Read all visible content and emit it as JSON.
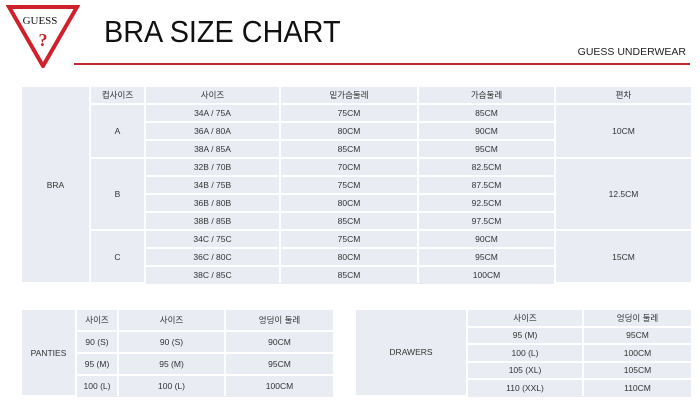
{
  "header": {
    "logo_text": "GUESS",
    "title": "BRA SIZE CHART",
    "brand": "GUESS UNDERWEAR",
    "accent_color": "#c0272d"
  },
  "bra": {
    "label": "BRA",
    "headers": [
      "컵사이즈",
      "사이즈",
      "밑가슴둘레",
      "가슴둘레",
      "편차"
    ],
    "groups": [
      {
        "cup": "A",
        "diff": "10CM",
        "rows": [
          [
            "34A / 75A",
            "75CM",
            "85CM"
          ],
          [
            "36A / 80A",
            "80CM",
            "90CM"
          ],
          [
            "38A / 85A",
            "85CM",
            "95CM"
          ]
        ]
      },
      {
        "cup": "B",
        "diff": "12.5CM",
        "rows": [
          [
            "32B / 70B",
            "70CM",
            "82.5CM"
          ],
          [
            "34B / 75B",
            "75CM",
            "87.5CM"
          ],
          [
            "36B / 80B",
            "80CM",
            "92.5CM"
          ],
          [
            "38B / 85B",
            "85CM",
            "97.5CM"
          ]
        ]
      },
      {
        "cup": "C",
        "diff": "15CM",
        "rows": [
          [
            "34C / 75C",
            "75CM",
            "90CM"
          ],
          [
            "36C / 80C",
            "80CM",
            "95CM"
          ],
          [
            "38C / 85C",
            "85CM",
            "100CM"
          ]
        ]
      }
    ]
  },
  "panties": {
    "label": "PANTIES",
    "headers": [
      "사이즈",
      "사이즈",
      "엉덩이 둘레"
    ],
    "rows": [
      [
        "90 (S)",
        "90 (S)",
        "90CM"
      ],
      [
        "95 (M)",
        "95 (M)",
        "95CM"
      ],
      [
        "100 (L)",
        "100 (L)",
        "100CM"
      ]
    ]
  },
  "drawers": {
    "label": "DRAWERS",
    "headers": [
      "사이즈",
      "엉덩이 둘레"
    ],
    "rows": [
      [
        "95 (M)",
        "95CM"
      ],
      [
        "100 (L)",
        "100CM"
      ],
      [
        "105 (XL)",
        "105CM"
      ],
      [
        "110 (XXL)",
        "110CM"
      ]
    ]
  }
}
